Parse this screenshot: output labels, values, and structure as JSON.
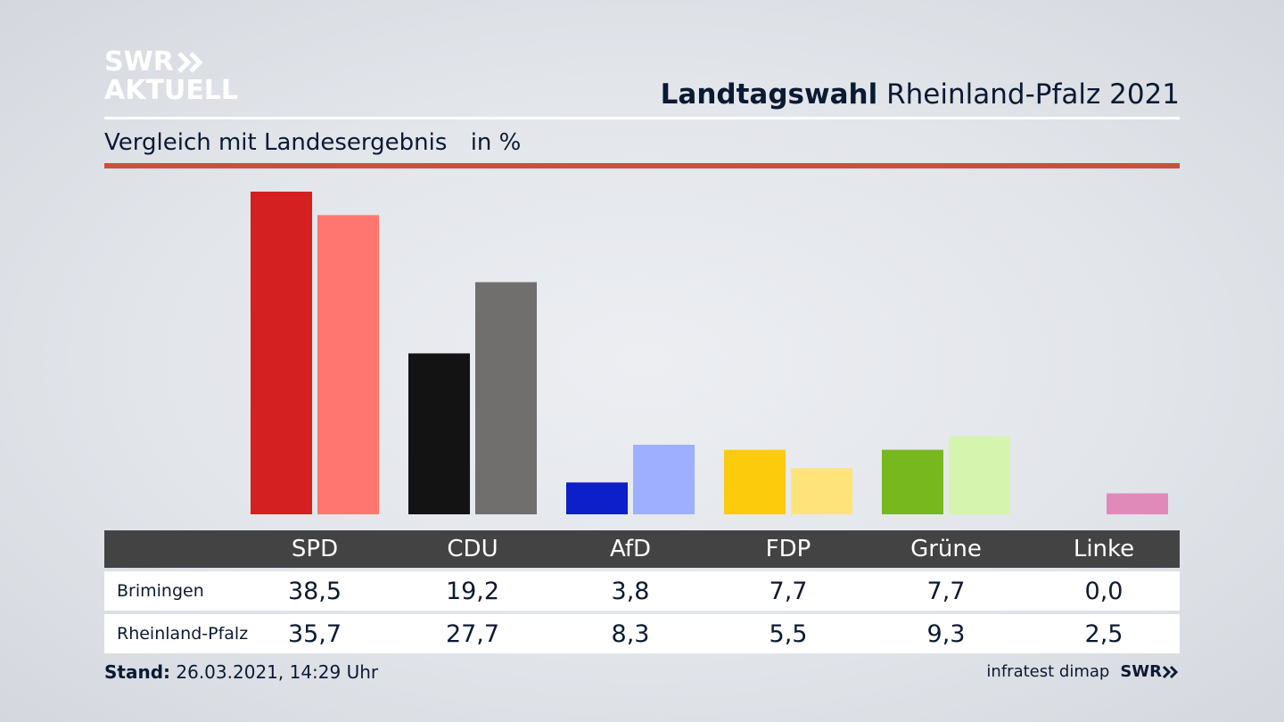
{
  "logo": {
    "line1": "SWR",
    "line2": "AKTUELL"
  },
  "header": {
    "title_bold": "Landtagswahl",
    "title_rest": "Rheinland-Pfalz 2021"
  },
  "subtitle": {
    "text": "Vergleich mit Landesergebnis",
    "unit": "in %"
  },
  "footer": {
    "stand_label": "Stand:",
    "stand_value": "26.03.2021, 14:29 Uhr",
    "source": "infratest dimap",
    "source_brand": "SWR"
  },
  "colors": {
    "header_row": "#434343",
    "accent_rule": "#c9513c"
  },
  "chart_data": {
    "type": "bar",
    "categories": [
      "SPD",
      "CDU",
      "AfD",
      "FDP",
      "Grüne",
      "Linke"
    ],
    "series": [
      {
        "name": "Brimingen",
        "values": [
          38.5,
          19.2,
          3.8,
          7.7,
          7.7,
          0.0
        ],
        "labels": [
          "38,5",
          "19,2",
          "3,8",
          "7,7",
          "7,7",
          "0,0"
        ],
        "colors": [
          "#d42020",
          "#131313",
          "#0d1fc8",
          "#fbcb0c",
          "#77b81e",
          "#d98abd"
        ]
      },
      {
        "name": "Rheinland-Pfalz",
        "values": [
          35.7,
          27.7,
          8.3,
          5.5,
          9.3,
          2.5
        ],
        "labels": [
          "35,7",
          "27,7",
          "8,3",
          "5,5",
          "9,3",
          "2,5"
        ],
        "colors": [
          "#ff7570",
          "#706f6e",
          "#9fafff",
          "#fde37a",
          "#d5f5ae",
          "#df8ab8"
        ]
      }
    ],
    "ylim": [
      0,
      38.5
    ],
    "grid": false,
    "legend": "table-below"
  }
}
